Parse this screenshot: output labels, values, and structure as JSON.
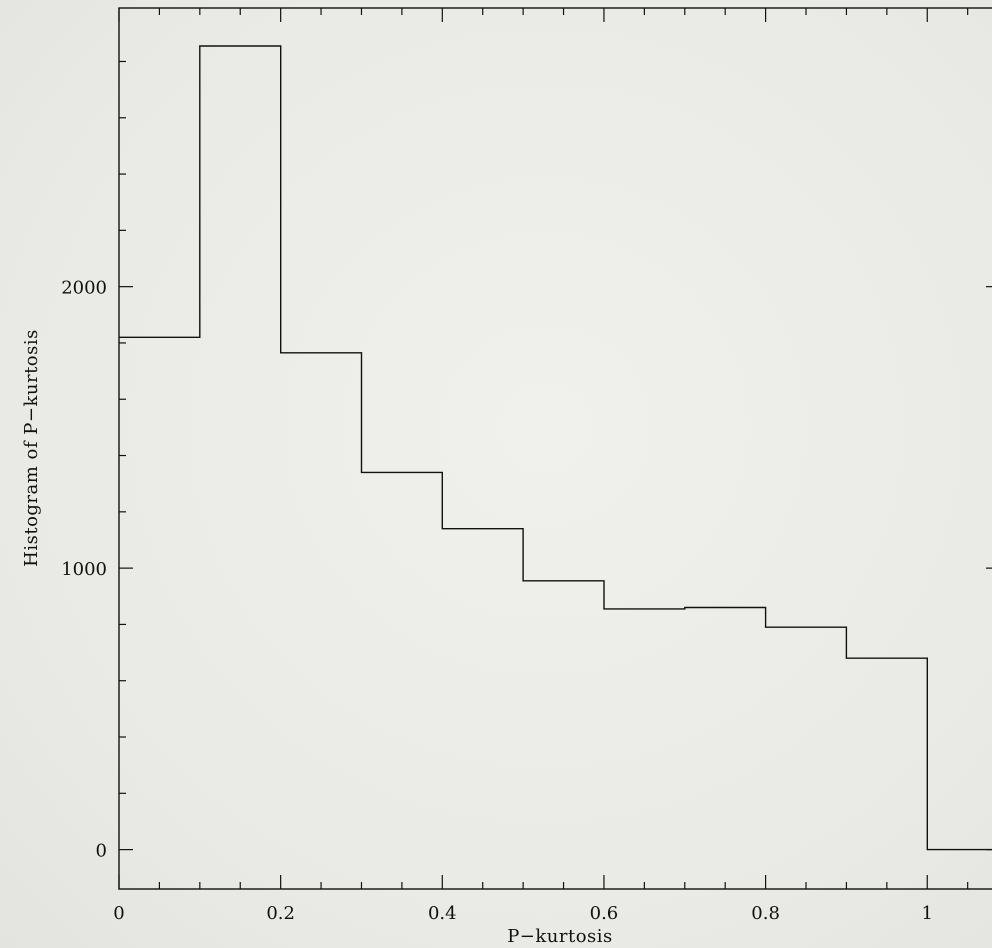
{
  "chart_data": {
    "type": "histogram",
    "xlabel": "P−kurtosis",
    "ylabel": "Histogram of P−kurtosis",
    "xlim": [
      0,
      1.09
    ],
    "ylim": [
      -140,
      2990
    ],
    "x_ticks": [
      0,
      0.2,
      0.4,
      0.6,
      0.8,
      1
    ],
    "x_tick_labels": [
      "0",
      "0.2",
      "0.4",
      "0.6",
      "0.8",
      "1"
    ],
    "y_ticks": [
      0,
      1000,
      2000
    ],
    "y_tick_labels": [
      "0",
      "1000",
      "2000"
    ],
    "bin_edges": [
      0,
      0.1,
      0.2,
      0.3,
      0.4,
      0.5,
      0.6,
      0.7,
      0.8,
      0.9,
      1.0,
      1.09
    ],
    "values": [
      1820,
      2855,
      1765,
      1340,
      1140,
      955,
      855,
      860,
      790,
      680,
      0
    ],
    "grid": false,
    "line_color": "#111111"
  }
}
